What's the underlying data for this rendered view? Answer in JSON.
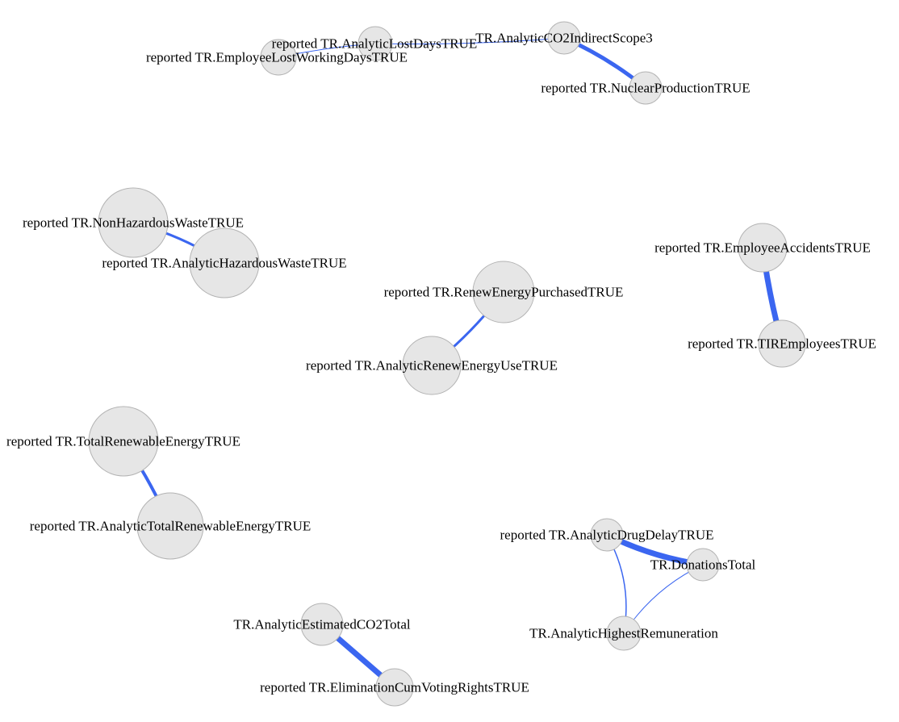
{
  "colors": {
    "background": "#ffffff",
    "node_fill": "#e6e6e6",
    "node_stroke": "#b3b3b3",
    "edge": "#3b66f0",
    "label": "#000000"
  },
  "nodes": [
    {
      "id": "n1",
      "label": "reported TR.EmployeeLostWorkingDaysTRUE"
    },
    {
      "id": "n2",
      "label": "reported TR.AnalyticLostDaysTRUE"
    },
    {
      "id": "n3",
      "label": "TR.AnalyticCO2IndirectScope3"
    },
    {
      "id": "n4",
      "label": "reported TR.NuclearProductionTRUE"
    },
    {
      "id": "n5",
      "label": "reported TR.NonHazardousWasteTRUE"
    },
    {
      "id": "n6",
      "label": "reported TR.AnalyticHazardousWasteTRUE"
    },
    {
      "id": "n7",
      "label": "reported TR.RenewEnergyPurchasedTRUE"
    },
    {
      "id": "n8",
      "label": "reported TR.AnalyticRenewEnergyUseTRUE"
    },
    {
      "id": "n9",
      "label": "reported TR.EmployeeAccidentsTRUE"
    },
    {
      "id": "n10",
      "label": "reported TR.TIREmployeesTRUE"
    },
    {
      "id": "n11",
      "label": "reported TR.TotalRenewableEnergyTRUE"
    },
    {
      "id": "n12",
      "label": "reported TR.AnalyticTotalRenewableEnergyTRUE"
    },
    {
      "id": "n13",
      "label": "reported TR.AnalyticDrugDelayTRUE"
    },
    {
      "id": "n14",
      "label": "TR.DonationsTotal"
    },
    {
      "id": "n15",
      "label": "TR.AnalyticHighestRemuneration"
    },
    {
      "id": "n16",
      "label": "TR.AnalyticEstimatedCO2Total"
    },
    {
      "id": "n17",
      "label": "reported TR.EliminationCumVotingRightsTRUE"
    }
  ],
  "edges": [
    {
      "source": "n1",
      "target": "n2",
      "weight": 1
    },
    {
      "source": "n2",
      "target": "n3",
      "weight": 1
    },
    {
      "source": "n3",
      "target": "n4",
      "weight": 5
    },
    {
      "source": "n5",
      "target": "n6",
      "weight": 3
    },
    {
      "source": "n7",
      "target": "n8",
      "weight": 3
    },
    {
      "source": "n9",
      "target": "n10",
      "weight": 7
    },
    {
      "source": "n11",
      "target": "n12",
      "weight": 4
    },
    {
      "source": "n13",
      "target": "n14",
      "weight": 7
    },
    {
      "source": "n13",
      "target": "n15",
      "weight": 1.5
    },
    {
      "source": "n14",
      "target": "n15",
      "weight": 1
    },
    {
      "source": "n16",
      "target": "n17",
      "weight": 7
    }
  ]
}
